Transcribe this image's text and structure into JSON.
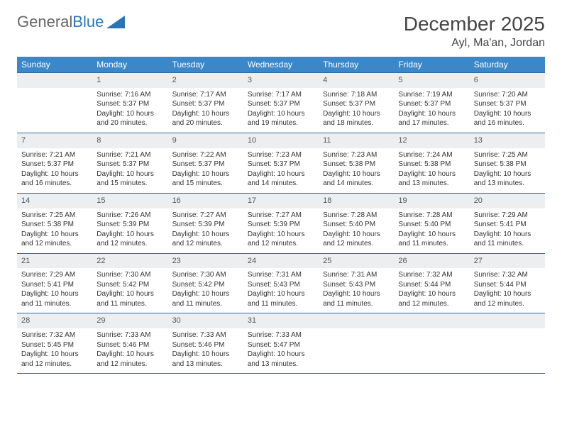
{
  "brand": {
    "part1": "General",
    "part2": "Blue"
  },
  "title": "December 2025",
  "location": "Ayl, Ma'an, Jordan",
  "colors": {
    "header_bg": "#3c87c7",
    "header_text": "#ffffff",
    "rule": "#2f6aa0",
    "daynum_bg": "#eceeef",
    "brand_blue": "#2d74b5"
  },
  "weekdays": [
    "Sunday",
    "Monday",
    "Tuesday",
    "Wednesday",
    "Thursday",
    "Friday",
    "Saturday"
  ],
  "weeks": [
    [
      null,
      {
        "n": "1",
        "sr": "7:16 AM",
        "ss": "5:37 PM",
        "dl": "10 hours and 20 minutes."
      },
      {
        "n": "2",
        "sr": "7:17 AM",
        "ss": "5:37 PM",
        "dl": "10 hours and 20 minutes."
      },
      {
        "n": "3",
        "sr": "7:17 AM",
        "ss": "5:37 PM",
        "dl": "10 hours and 19 minutes."
      },
      {
        "n": "4",
        "sr": "7:18 AM",
        "ss": "5:37 PM",
        "dl": "10 hours and 18 minutes."
      },
      {
        "n": "5",
        "sr": "7:19 AM",
        "ss": "5:37 PM",
        "dl": "10 hours and 17 minutes."
      },
      {
        "n": "6",
        "sr": "7:20 AM",
        "ss": "5:37 PM",
        "dl": "10 hours and 16 minutes."
      }
    ],
    [
      {
        "n": "7",
        "sr": "7:21 AM",
        "ss": "5:37 PM",
        "dl": "10 hours and 16 minutes."
      },
      {
        "n": "8",
        "sr": "7:21 AM",
        "ss": "5:37 PM",
        "dl": "10 hours and 15 minutes."
      },
      {
        "n": "9",
        "sr": "7:22 AM",
        "ss": "5:37 PM",
        "dl": "10 hours and 15 minutes."
      },
      {
        "n": "10",
        "sr": "7:23 AM",
        "ss": "5:37 PM",
        "dl": "10 hours and 14 minutes."
      },
      {
        "n": "11",
        "sr": "7:23 AM",
        "ss": "5:38 PM",
        "dl": "10 hours and 14 minutes."
      },
      {
        "n": "12",
        "sr": "7:24 AM",
        "ss": "5:38 PM",
        "dl": "10 hours and 13 minutes."
      },
      {
        "n": "13",
        "sr": "7:25 AM",
        "ss": "5:38 PM",
        "dl": "10 hours and 13 minutes."
      }
    ],
    [
      {
        "n": "14",
        "sr": "7:25 AM",
        "ss": "5:38 PM",
        "dl": "10 hours and 12 minutes."
      },
      {
        "n": "15",
        "sr": "7:26 AM",
        "ss": "5:39 PM",
        "dl": "10 hours and 12 minutes."
      },
      {
        "n": "16",
        "sr": "7:27 AM",
        "ss": "5:39 PM",
        "dl": "10 hours and 12 minutes."
      },
      {
        "n": "17",
        "sr": "7:27 AM",
        "ss": "5:39 PM",
        "dl": "10 hours and 12 minutes."
      },
      {
        "n": "18",
        "sr": "7:28 AM",
        "ss": "5:40 PM",
        "dl": "10 hours and 12 minutes."
      },
      {
        "n": "19",
        "sr": "7:28 AM",
        "ss": "5:40 PM",
        "dl": "10 hours and 11 minutes."
      },
      {
        "n": "20",
        "sr": "7:29 AM",
        "ss": "5:41 PM",
        "dl": "10 hours and 11 minutes."
      }
    ],
    [
      {
        "n": "21",
        "sr": "7:29 AM",
        "ss": "5:41 PM",
        "dl": "10 hours and 11 minutes."
      },
      {
        "n": "22",
        "sr": "7:30 AM",
        "ss": "5:42 PM",
        "dl": "10 hours and 11 minutes."
      },
      {
        "n": "23",
        "sr": "7:30 AM",
        "ss": "5:42 PM",
        "dl": "10 hours and 11 minutes."
      },
      {
        "n": "24",
        "sr": "7:31 AM",
        "ss": "5:43 PM",
        "dl": "10 hours and 11 minutes."
      },
      {
        "n": "25",
        "sr": "7:31 AM",
        "ss": "5:43 PM",
        "dl": "10 hours and 11 minutes."
      },
      {
        "n": "26",
        "sr": "7:32 AM",
        "ss": "5:44 PM",
        "dl": "10 hours and 12 minutes."
      },
      {
        "n": "27",
        "sr": "7:32 AM",
        "ss": "5:44 PM",
        "dl": "10 hours and 12 minutes."
      }
    ],
    [
      {
        "n": "28",
        "sr": "7:32 AM",
        "ss": "5:45 PM",
        "dl": "10 hours and 12 minutes."
      },
      {
        "n": "29",
        "sr": "7:33 AM",
        "ss": "5:46 PM",
        "dl": "10 hours and 12 minutes."
      },
      {
        "n": "30",
        "sr": "7:33 AM",
        "ss": "5:46 PM",
        "dl": "10 hours and 13 minutes."
      },
      {
        "n": "31",
        "sr": "7:33 AM",
        "ss": "5:47 PM",
        "dl": "10 hours and 13 minutes."
      },
      null,
      null,
      null
    ]
  ],
  "labels": {
    "sunrise": "Sunrise: ",
    "sunset": "Sunset: ",
    "daylight": "Daylight: "
  }
}
